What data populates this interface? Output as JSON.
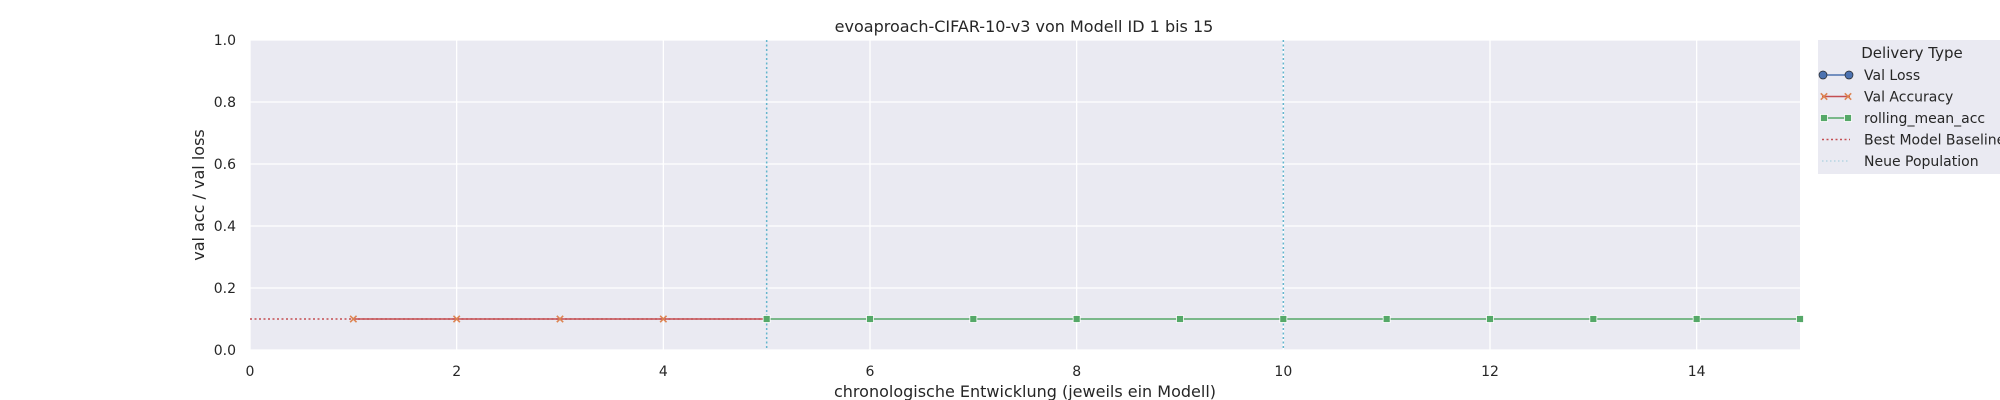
{
  "chart_data": {
    "type": "line",
    "title": "evoaproach-CIFAR-10-v3 von Modell ID 1 bis 15",
    "xlabel": "chronologische Entwicklung (jeweils ein Modell)",
    "ylabel": "val acc / val loss",
    "xlim": [
      0,
      15
    ],
    "ylim": [
      0,
      1.0
    ],
    "xticks": [
      0,
      2,
      4,
      6,
      8,
      10,
      12,
      14
    ],
    "yticks": [
      0.0,
      0.2,
      0.4,
      0.6,
      0.8,
      1.0
    ],
    "xtick_labels": [
      "0",
      "2",
      "4",
      "6",
      "8",
      "10",
      "12",
      "14"
    ],
    "ytick_labels": [
      "0.0",
      "0.2",
      "0.4",
      "0.6",
      "0.8",
      "1.0"
    ],
    "grid": true,
    "legend": {
      "title": "Delivery Type",
      "placement": "outside-right-top",
      "entries": [
        "Val Loss",
        "Val Accuracy",
        "rolling_mean_acc",
        "Best Model Baseline",
        "Neue Population"
      ]
    },
    "colors": {
      "val_loss": "#4c72b0",
      "val_accuracy": "#dd8452",
      "val_accuracy_line": "#c44e52",
      "rolling_mean_acc": "#55a868",
      "baseline": "#c44e52",
      "population": "#64b5cd",
      "plot_bg": "#eaeaf2",
      "grid": "#ffffff"
    },
    "series": [
      {
        "name": "Val Accuracy",
        "key": "val_accuracy",
        "x": [
          1,
          2,
          3,
          4,
          5
        ],
        "y": [
          0.1,
          0.1,
          0.1,
          0.1,
          0.1
        ]
      },
      {
        "name": "rolling_mean_acc",
        "key": "rolling_mean_acc",
        "x": [
          5,
          6,
          7,
          8,
          9,
          10,
          11,
          12,
          13,
          14,
          15
        ],
        "y": [
          0.1,
          0.1,
          0.1,
          0.1,
          0.1,
          0.1,
          0.1,
          0.1,
          0.1,
          0.1,
          0.1
        ]
      }
    ],
    "baseline": {
      "name": "Best Model Baseline",
      "y": 0.1,
      "x_from": 0,
      "x_to": 5
    },
    "population_lines": {
      "name": "Neue Population",
      "x": [
        5,
        10
      ]
    }
  }
}
